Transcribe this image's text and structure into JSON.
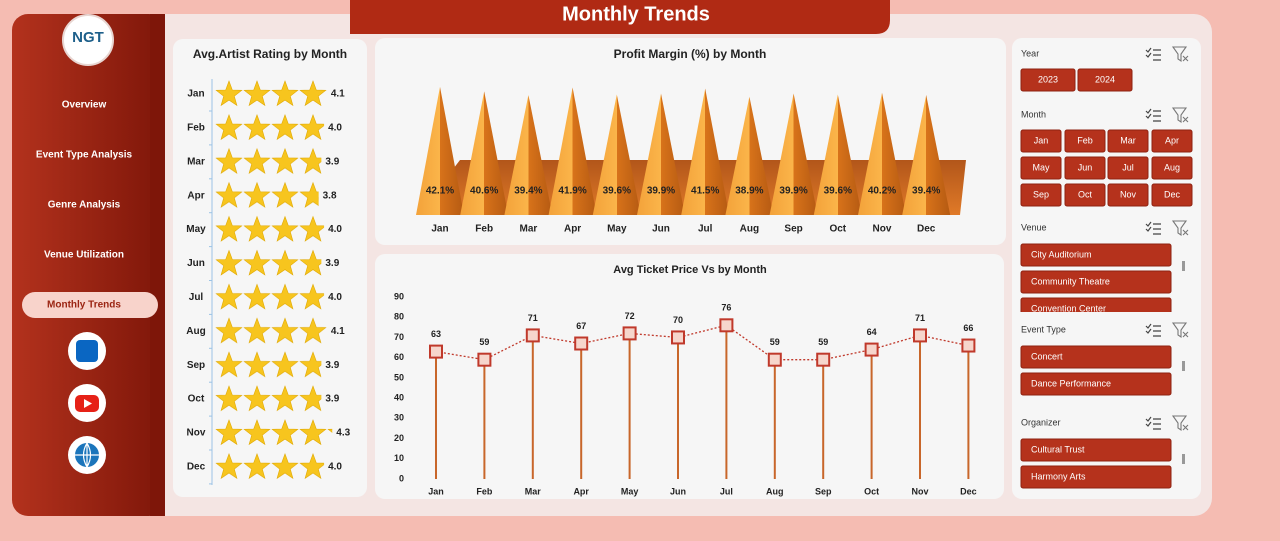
{
  "header": {
    "title": "Monthly Trends"
  },
  "logo": "NGT",
  "nav": [
    "Overview",
    "Event Type Analysis",
    "Genre Analysis",
    "Venue Utilization",
    "Monthly Trends"
  ],
  "chart_data": [
    {
      "type": "pictograph",
      "title": "Avg.Artist Rating by Month",
      "categories": [
        "Jan",
        "Feb",
        "Mar",
        "Apr",
        "May",
        "Jun",
        "Jul",
        "Aug",
        "Sep",
        "Oct",
        "Nov",
        "Dec"
      ],
      "values": [
        4.1,
        4.0,
        3.9,
        3.8,
        4.0,
        3.9,
        4.0,
        4.1,
        3.9,
        3.9,
        4.3,
        4.0
      ],
      "value_labels": [
        "4.1",
        "4.0",
        "3.9",
        "3.8",
        "4.0",
        "3.9",
        "4.0",
        "4.1",
        "3.9",
        "3.9",
        "4.3",
        "4.0"
      ],
      "xlim": [
        0,
        4.4
      ],
      "color": "#f7c51e"
    },
    {
      "type": "pyramid",
      "title": "Profit Margin (%) by Month",
      "categories": [
        "Jan",
        "Feb",
        "Mar",
        "Apr",
        "May",
        "Jun",
        "Jul",
        "Aug",
        "Sep",
        "Oct",
        "Nov",
        "Dec"
      ],
      "values": [
        42.1,
        40.6,
        39.4,
        41.9,
        39.6,
        39.9,
        41.5,
        38.9,
        39.9,
        39.6,
        40.2,
        39.4
      ],
      "value_labels": [
        "42.1%",
        "40.6%",
        "39.4%",
        "41.9%",
        "39.6%",
        "39.9%",
        "41.5%",
        "38.9%",
        "39.9%",
        "39.6%",
        "40.2%",
        "39.4%"
      ],
      "ylim": [
        0,
        45
      ],
      "color": "#f08a1c"
    },
    {
      "type": "line",
      "title": "Avg Ticket Price Vs  by Month",
      "categories": [
        "Jan",
        "Feb",
        "Mar",
        "Apr",
        "May",
        "Jun",
        "Jul",
        "Aug",
        "Sep",
        "Oct",
        "Nov",
        "Dec"
      ],
      "values": [
        63,
        59,
        71,
        67,
        72,
        70,
        76,
        59,
        59,
        64,
        71,
        66
      ],
      "ylim": [
        0,
        90
      ],
      "yticks": [
        0,
        10,
        20,
        30,
        40,
        50,
        60,
        70,
        80,
        90
      ],
      "grid": false,
      "color": "#c0392b"
    }
  ],
  "slicers": [
    {
      "title": "Year",
      "items": [
        "2023",
        "2024"
      ]
    },
    {
      "title": "Month",
      "items": [
        "Jan",
        "Feb",
        "Mar",
        "Apr",
        "May",
        "Jun",
        "Jul",
        "Aug",
        "Sep",
        "Oct",
        "Nov",
        "Dec"
      ]
    },
    {
      "title": "Venue",
      "items": [
        "City Auditorium",
        "Community Theatre",
        "Convention Center"
      ]
    },
    {
      "title": "Event Type",
      "items": [
        "Concert",
        "Dance Performance"
      ]
    },
    {
      "title": "Organizer",
      "items": [
        "Cultural Trust",
        "Harmony Arts"
      ]
    }
  ]
}
